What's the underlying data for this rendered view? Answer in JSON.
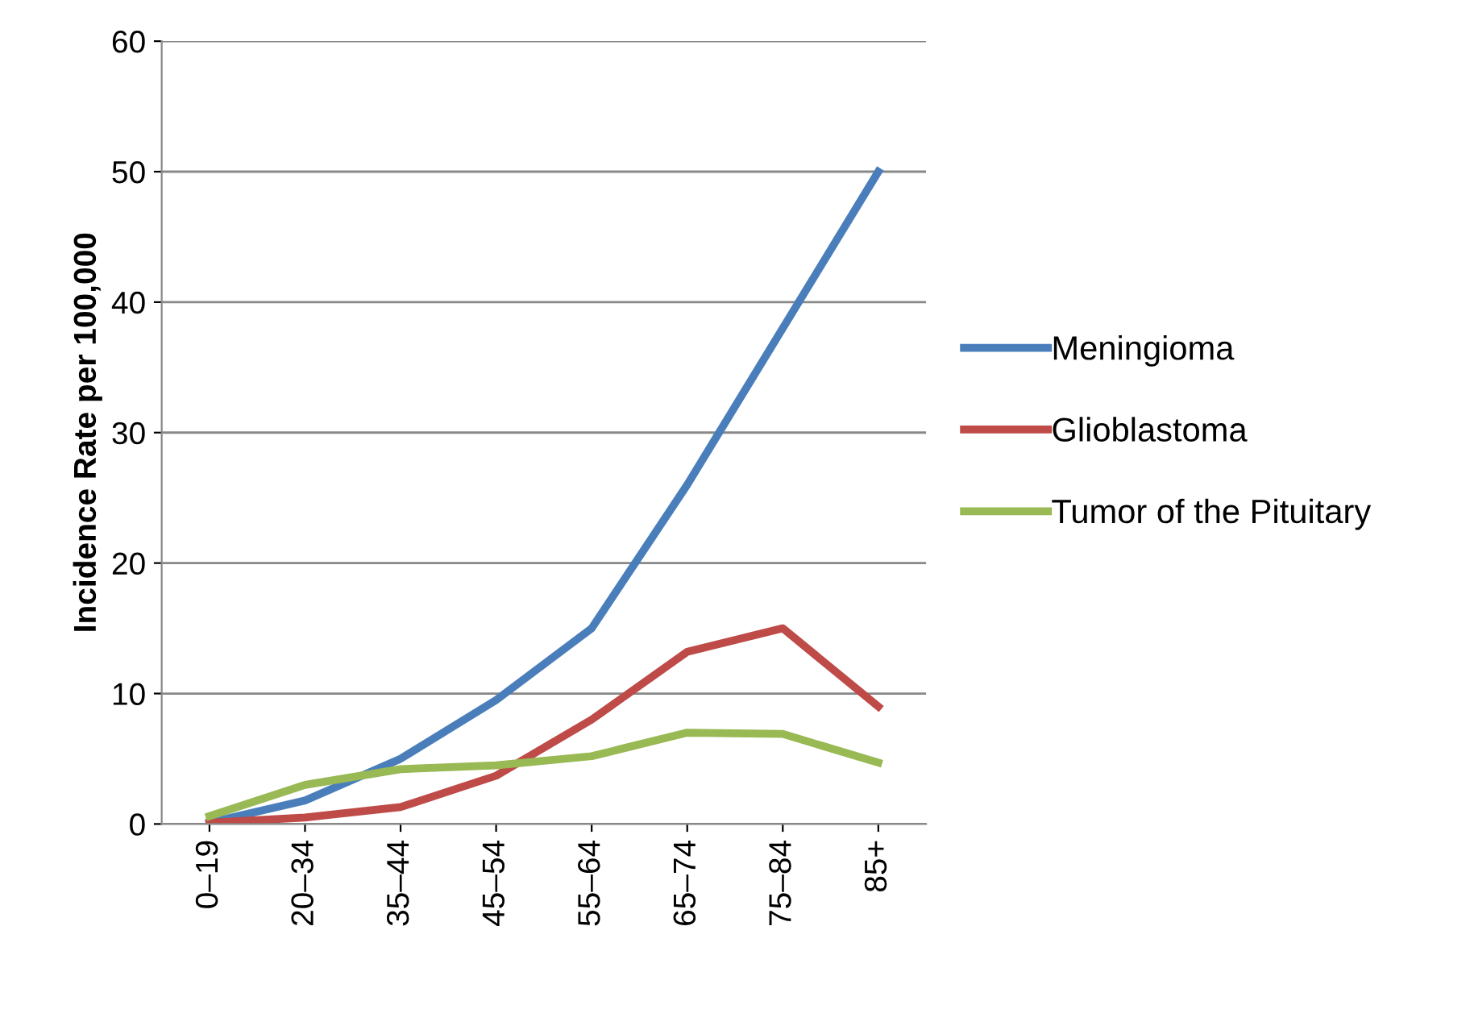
{
  "chart_data": {
    "type": "line",
    "ylabel": "Incidence Rate per 100,000",
    "categories": [
      "0–19",
      "20–34",
      "35–44",
      "45–54",
      "55–64",
      "65–74",
      "75–84",
      "85+"
    ],
    "series": [
      {
        "name": "Meningioma",
        "color": "#4a7ebb",
        "values": [
          0.1,
          1.8,
          5,
          9.5,
          15,
          26,
          38,
          50
        ]
      },
      {
        "name": "Glioblastoma",
        "color": "#be4b48",
        "values": [
          0.1,
          0.5,
          1.3,
          3.7,
          8,
          13.2,
          15,
          9
        ]
      },
      {
        "name": "Tumor of the Pituitary",
        "color": "#98b954",
        "values": [
          0.6,
          3,
          4.2,
          4.5,
          5.2,
          7,
          6.9,
          4.7
        ]
      }
    ],
    "ylim": [
      0,
      60
    ],
    "yticks": [
      0,
      10,
      20,
      30,
      40,
      50,
      60
    ],
    "grid": "y",
    "legend": "right",
    "marker": "none",
    "line_style": "solid"
  }
}
